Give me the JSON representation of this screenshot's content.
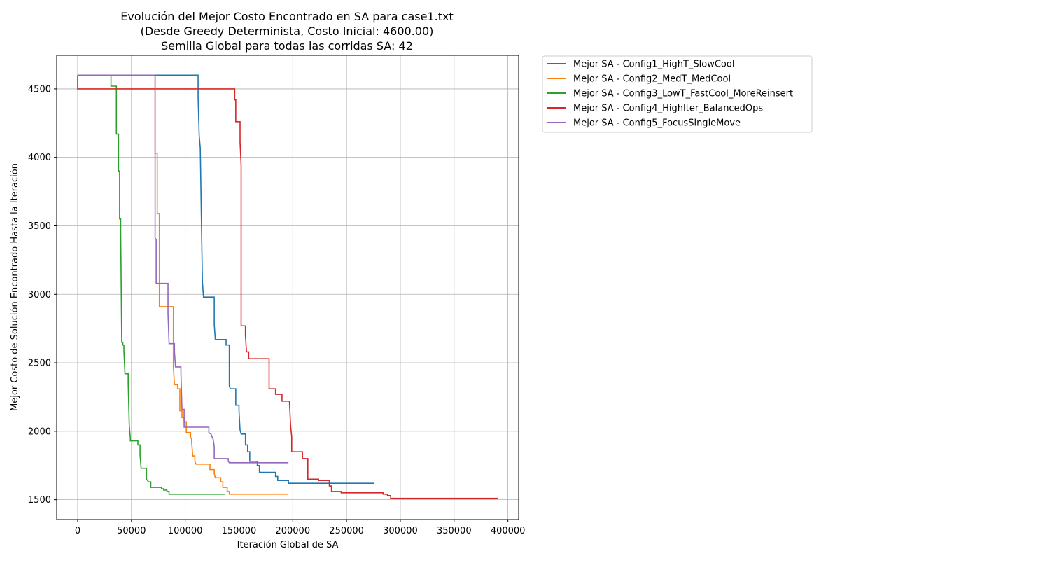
{
  "chart_data": {
    "type": "line",
    "title_lines": [
      "Evolución del Mejor Costo Encontrado en SA para case1.txt",
      "(Desde Greedy Determinista, Costo Inicial: 4600.00)",
      "Semilla Global para todas las corridas SA: 42"
    ],
    "xlabel": "Iteración Global de SA",
    "ylabel": "Mejor Costo de Solución Encontrado Hasta la Iteración",
    "xlim": [
      -19500,
      410000
    ],
    "ylim": [
      1355,
      4745
    ],
    "xticks": [
      0,
      50000,
      100000,
      150000,
      200000,
      250000,
      300000,
      350000,
      400000
    ],
    "xtick_labels": [
      "0",
      "50000",
      "100000",
      "150000",
      "200000",
      "250000",
      "300000",
      "350000",
      "400000"
    ],
    "yticks": [
      1500,
      2000,
      2500,
      3000,
      3500,
      4000,
      4500
    ],
    "ytick_labels": [
      "1500",
      "2000",
      "2500",
      "3000",
      "3500",
      "4000",
      "4500"
    ],
    "grid": true,
    "legend_position": "outside-top-right",
    "series": [
      {
        "name": "Mejor SA - Config1_HighT_SlowCool",
        "color": "#1f77b4",
        "points": [
          [
            0,
            4600
          ],
          [
            112000,
            4600
          ],
          [
            112000,
            4440
          ],
          [
            113000,
            4160
          ],
          [
            114000,
            4070
          ],
          [
            115000,
            3570
          ],
          [
            116000,
            3090
          ],
          [
            117000,
            2980
          ],
          [
            127000,
            2980
          ],
          [
            127000,
            2780
          ],
          [
            128000,
            2670
          ],
          [
            138000,
            2670
          ],
          [
            138000,
            2630
          ],
          [
            141000,
            2630
          ],
          [
            141000,
            2330
          ],
          [
            142000,
            2310
          ],
          [
            147000,
            2310
          ],
          [
            147000,
            2190
          ],
          [
            150000,
            2190
          ],
          [
            150000,
            2150
          ],
          [
            151000,
            2010
          ],
          [
            152000,
            1980
          ],
          [
            156000,
            1980
          ],
          [
            156000,
            1900
          ],
          [
            158000,
            1900
          ],
          [
            158000,
            1850
          ],
          [
            160000,
            1850
          ],
          [
            160000,
            1780
          ],
          [
            167000,
            1780
          ],
          [
            167000,
            1750
          ],
          [
            169000,
            1750
          ],
          [
            169000,
            1700
          ],
          [
            184000,
            1700
          ],
          [
            184000,
            1670
          ],
          [
            186000,
            1670
          ],
          [
            186000,
            1640
          ],
          [
            196000,
            1640
          ],
          [
            196000,
            1620
          ],
          [
            276000,
            1620
          ]
        ]
      },
      {
        "name": "Mejor SA - Config2_MedT_MedCool",
        "color": "#ff7f0e",
        "points": [
          [
            0,
            4600
          ],
          [
            72000,
            4600
          ],
          [
            72000,
            4030
          ],
          [
            74000,
            4030
          ],
          [
            74000,
            3590
          ],
          [
            76000,
            3590
          ],
          [
            76000,
            3500
          ],
          [
            76000,
            2910
          ],
          [
            89000,
            2910
          ],
          [
            89000,
            2470
          ],
          [
            90000,
            2340
          ],
          [
            93000,
            2340
          ],
          [
            93000,
            2310
          ],
          [
            95000,
            2310
          ],
          [
            95000,
            2150
          ],
          [
            97000,
            2150
          ],
          [
            97000,
            2100
          ],
          [
            99000,
            2100
          ],
          [
            99000,
            2070
          ],
          [
            101000,
            2070
          ],
          [
            101000,
            1990
          ],
          [
            105000,
            1990
          ],
          [
            105000,
            1950
          ],
          [
            106000,
            1950
          ],
          [
            106000,
            1920
          ],
          [
            107000,
            1820
          ],
          [
            109000,
            1820
          ],
          [
            109000,
            1780
          ],
          [
            110000,
            1760
          ],
          [
            123000,
            1760
          ],
          [
            123000,
            1720
          ],
          [
            127000,
            1720
          ],
          [
            127000,
            1690
          ],
          [
            128000,
            1660
          ],
          [
            133000,
            1660
          ],
          [
            133000,
            1630
          ],
          [
            135000,
            1630
          ],
          [
            135000,
            1590
          ],
          [
            139000,
            1590
          ],
          [
            139000,
            1560
          ],
          [
            141000,
            1560
          ],
          [
            141000,
            1540
          ],
          [
            196000,
            1540
          ]
        ]
      },
      {
        "name": "Mejor SA - Config3_LowT_FastCool_MoreReinsert",
        "color": "#2ca02c",
        "points": [
          [
            0,
            4600
          ],
          [
            31000,
            4600
          ],
          [
            31000,
            4520
          ],
          [
            36000,
            4520
          ],
          [
            36000,
            4170
          ],
          [
            38000,
            4170
          ],
          [
            38000,
            3900
          ],
          [
            39000,
            3900
          ],
          [
            39000,
            3550
          ],
          [
            40000,
            3550
          ],
          [
            40000,
            3460
          ],
          [
            41000,
            2650
          ],
          [
            42000,
            2650
          ],
          [
            42000,
            2630
          ],
          [
            43000,
            2630
          ],
          [
            43000,
            2590
          ],
          [
            44000,
            2420
          ],
          [
            47000,
            2420
          ],
          [
            47000,
            2350
          ],
          [
            48000,
            2040
          ],
          [
            49000,
            1950
          ],
          [
            49000,
            1930
          ],
          [
            56000,
            1930
          ],
          [
            56000,
            1900
          ],
          [
            58000,
            1900
          ],
          [
            58000,
            1830
          ],
          [
            59000,
            1730
          ],
          [
            64000,
            1730
          ],
          [
            64000,
            1650
          ],
          [
            65000,
            1640
          ],
          [
            66000,
            1630
          ],
          [
            68000,
            1630
          ],
          [
            68000,
            1590
          ],
          [
            78000,
            1590
          ],
          [
            78000,
            1580
          ],
          [
            80000,
            1580
          ],
          [
            80000,
            1570
          ],
          [
            83000,
            1570
          ],
          [
            83000,
            1560
          ],
          [
            85000,
            1560
          ],
          [
            85000,
            1540
          ],
          [
            137000,
            1540
          ]
        ]
      },
      {
        "name": "Mejor SA - Config4_HighIter_BalancedOps",
        "color": "#d62728",
        "points": [
          [
            0,
            4600
          ],
          [
            0,
            4500
          ],
          [
            146000,
            4500
          ],
          [
            146000,
            4420
          ],
          [
            147000,
            4420
          ],
          [
            147000,
            4260
          ],
          [
            151000,
            4260
          ],
          [
            151000,
            4110
          ],
          [
            152000,
            3940
          ],
          [
            152000,
            2770
          ],
          [
            156000,
            2770
          ],
          [
            156000,
            2700
          ],
          [
            157000,
            2580
          ],
          [
            159000,
            2580
          ],
          [
            159000,
            2530
          ],
          [
            178000,
            2530
          ],
          [
            178000,
            2310
          ],
          [
            184000,
            2310
          ],
          [
            184000,
            2270
          ],
          [
            190000,
            2270
          ],
          [
            190000,
            2220
          ],
          [
            197000,
            2220
          ],
          [
            197000,
            2200
          ],
          [
            198000,
            2040
          ],
          [
            199000,
            1960
          ],
          [
            199000,
            1850
          ],
          [
            209000,
            1850
          ],
          [
            209000,
            1800
          ],
          [
            214000,
            1800
          ],
          [
            214000,
            1650
          ],
          [
            224000,
            1650
          ],
          [
            224000,
            1640
          ],
          [
            234000,
            1640
          ],
          [
            234000,
            1600
          ],
          [
            236000,
            1600
          ],
          [
            236000,
            1560
          ],
          [
            245000,
            1560
          ],
          [
            245000,
            1550
          ],
          [
            284000,
            1550
          ],
          [
            284000,
            1540
          ],
          [
            288000,
            1540
          ],
          [
            288000,
            1530
          ],
          [
            291000,
            1530
          ],
          [
            291000,
            1510
          ],
          [
            391000,
            1510
          ]
        ]
      },
      {
        "name": "Mejor SA - Config5_FocusSingleMove",
        "color": "#9467bd",
        "points": [
          [
            0,
            4600
          ],
          [
            72000,
            4600
          ],
          [
            72000,
            4000
          ],
          [
            72000,
            3410
          ],
          [
            73000,
            3400
          ],
          [
            73000,
            3080
          ],
          [
            84000,
            3080
          ],
          [
            84000,
            2860
          ],
          [
            85000,
            2640
          ],
          [
            90000,
            2640
          ],
          [
            90000,
            2580
          ],
          [
            91000,
            2470
          ],
          [
            96000,
            2470
          ],
          [
            96000,
            2430
          ],
          [
            97000,
            2160
          ],
          [
            99000,
            2160
          ],
          [
            99000,
            2030
          ],
          [
            122000,
            2030
          ],
          [
            122000,
            1990
          ],
          [
            124000,
            1980
          ],
          [
            125000,
            1960
          ],
          [
            126000,
            1940
          ],
          [
            127000,
            1890
          ],
          [
            127000,
            1800
          ],
          [
            140000,
            1800
          ],
          [
            140000,
            1780
          ],
          [
            141000,
            1770
          ],
          [
            196000,
            1770
          ]
        ]
      }
    ]
  }
}
